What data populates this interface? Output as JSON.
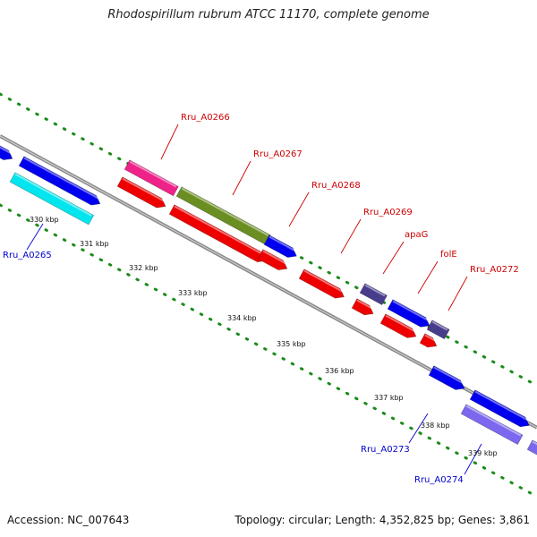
{
  "title": "Rhodospirillum rubrum ATCC 11170, complete genome",
  "footer": {
    "accession": "Accession: NC_007643",
    "summary": "Topology: circular; Length: 4,352,825 bp; Genes: 3,861"
  },
  "colors": {
    "backbone": "#8a8a8a",
    "dots": "#1a8c1a",
    "label_forward": "#cc0000",
    "label_reverse": "#0000cc"
  },
  "ticks": [
    "330 kbp",
    "331 kbp",
    "332 kbp",
    "333 kbp",
    "334 kbp",
    "335 kbp",
    "336 kbp",
    "337 kbp",
    "338 kbp",
    "339 kbp"
  ],
  "labels": [
    {
      "text": "Rru_A0266",
      "strand": "forward"
    },
    {
      "text": "Rru_A0267",
      "strand": "forward"
    },
    {
      "text": "Rru_A0268",
      "strand": "forward"
    },
    {
      "text": "Rru_A0269",
      "strand": "forward"
    },
    {
      "text": "apaG",
      "strand": "forward"
    },
    {
      "text": "folE",
      "strand": "forward"
    },
    {
      "text": "Rru_A0272",
      "strand": "forward"
    },
    {
      "text": "Rru_A0265",
      "strand": "reverse"
    },
    {
      "text": "Rru_A0273",
      "strand": "reverse"
    },
    {
      "text": "Rru_A0274",
      "strand": "reverse"
    }
  ],
  "features": [
    {
      "color": "#ee2288"
    },
    {
      "color": "#6b8e23"
    },
    {
      "color": "#0000ee"
    },
    {
      "color": "#ee0000"
    },
    {
      "color": "#00e5ee"
    },
    {
      "color": "#483d8b"
    },
    {
      "color": "#7b68ee"
    }
  ]
}
